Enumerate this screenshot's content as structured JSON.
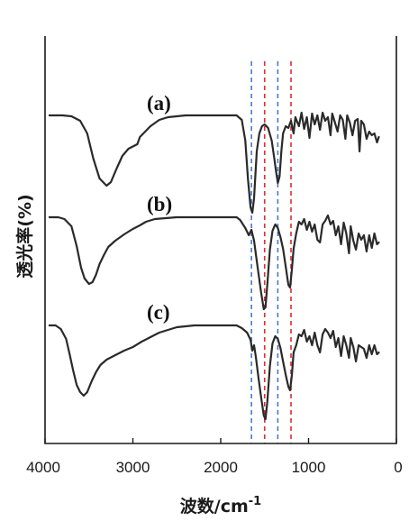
{
  "chart_data": {
    "type": "line",
    "title": "",
    "xlabel": "波数/cm",
    "xlabel_sup": "-1",
    "ylabel": "透光率(%)",
    "xlim": [
      4000,
      0
    ],
    "x_reversed": true,
    "x_ticks": [
      4000,
      3000,
      2000,
      1000,
      0
    ],
    "y_ticks_shown": false,
    "grid": false,
    "legend": "none",
    "reference_lines": [
      {
        "x": 1650,
        "color": "#4a78c8"
      },
      {
        "x": 1500,
        "color": "#d93030"
      },
      {
        "x": 1350,
        "color": "#4a78c8"
      },
      {
        "x": 1200,
        "color": "#d93030"
      }
    ],
    "series": [
      {
        "label": "(a)",
        "color": "#2a2a2a",
        "offset": 0,
        "points": [
          [
            3950,
            0
          ],
          [
            3800,
            0
          ],
          [
            3700,
            -1
          ],
          [
            3600,
            -6
          ],
          [
            3520,
            -20
          ],
          [
            3450,
            -48
          ],
          [
            3380,
            -70
          ],
          [
            3300,
            -78
          ],
          [
            3250,
            -74
          ],
          [
            3180,
            -58
          ],
          [
            3120,
            -45
          ],
          [
            3050,
            -37
          ],
          [
            2950,
            -32
          ],
          [
            2920,
            -24
          ],
          [
            2880,
            -20
          ],
          [
            2800,
            -12
          ],
          [
            2700,
            -5
          ],
          [
            2600,
            -2
          ],
          [
            2400,
            0
          ],
          [
            2000,
            0
          ],
          [
            1820,
            0
          ],
          [
            1760,
            -5
          ],
          [
            1720,
            -28
          ],
          [
            1690,
            -70
          ],
          [
            1660,
            -102
          ],
          [
            1640,
            -108
          ],
          [
            1620,
            -92
          ],
          [
            1590,
            -40
          ],
          [
            1560,
            -20
          ],
          [
            1530,
            -12
          ],
          [
            1500,
            -10
          ],
          [
            1460,
            -14
          ],
          [
            1420,
            -28
          ],
          [
            1390,
            -48
          ],
          [
            1370,
            -62
          ],
          [
            1350,
            -75
          ],
          [
            1330,
            -68
          ],
          [
            1310,
            -40
          ],
          [
            1290,
            -20
          ],
          [
            1260,
            -12
          ],
          [
            1230,
            -14
          ],
          [
            1200,
            -6
          ],
          [
            1170,
            -20
          ],
          [
            1150,
            -2
          ],
          [
            1110,
            -12
          ],
          [
            1080,
            3
          ],
          [
            1050,
            -15
          ],
          [
            1020,
            -2
          ],
          [
            990,
            -25
          ],
          [
            960,
            2
          ],
          [
            930,
            -10
          ],
          [
            900,
            0
          ],
          [
            870,
            -16
          ],
          [
            840,
            3
          ],
          [
            810,
            -6
          ],
          [
            780,
            -2
          ],
          [
            750,
            -22
          ],
          [
            730,
            2
          ],
          [
            700,
            -8
          ],
          [
            670,
            -18
          ],
          [
            640,
            0
          ],
          [
            610,
            -5
          ],
          [
            580,
            -26
          ],
          [
            560,
            0
          ],
          [
            530,
            -8
          ],
          [
            500,
            -22
          ],
          [
            470,
            -6
          ],
          [
            440,
            -4
          ],
          [
            420,
            -40
          ],
          [
            400,
            -6
          ],
          [
            370,
            -10
          ],
          [
            340,
            -26
          ],
          [
            310,
            -18
          ],
          [
            280,
            -22
          ],
          [
            250,
            -20
          ],
          [
            220,
            -30
          ],
          [
            200,
            -24
          ]
        ]
      },
      {
        "label": "(b)",
        "color": "#2a2a2a",
        "offset": 113,
        "points": [
          [
            3950,
            0
          ],
          [
            3850,
            0
          ],
          [
            3780,
            -2
          ],
          [
            3700,
            -10
          ],
          [
            3640,
            -32
          ],
          [
            3590,
            -56
          ],
          [
            3550,
            -68
          ],
          [
            3500,
            -74
          ],
          [
            3460,
            -72
          ],
          [
            3420,
            -64
          ],
          [
            3380,
            -52
          ],
          [
            3330,
            -42
          ],
          [
            3280,
            -33
          ],
          [
            3200,
            -26
          ],
          [
            3100,
            -19
          ],
          [
            3000,
            -13
          ],
          [
            2920,
            -9
          ],
          [
            2850,
            -5
          ],
          [
            2750,
            -2
          ],
          [
            2500,
            0
          ],
          [
            2000,
            0
          ],
          [
            1820,
            0
          ],
          [
            1780,
            -3
          ],
          [
            1720,
            -12
          ],
          [
            1680,
            -20
          ],
          [
            1650,
            -14
          ],
          [
            1620,
            -26
          ],
          [
            1580,
            -55
          ],
          [
            1540,
            -84
          ],
          [
            1510,
            -102
          ],
          [
            1490,
            -100
          ],
          [
            1470,
            -75
          ],
          [
            1440,
            -36
          ],
          [
            1410,
            -15
          ],
          [
            1380,
            -8
          ],
          [
            1350,
            -12
          ],
          [
            1320,
            -22
          ],
          [
            1290,
            -35
          ],
          [
            1260,
            -55
          ],
          [
            1230,
            -75
          ],
          [
            1210,
            -78
          ],
          [
            1190,
            -58
          ],
          [
            1170,
            -35
          ],
          [
            1140,
            -18
          ],
          [
            1110,
            -5
          ],
          [
            1080,
            -8
          ],
          [
            1050,
            -2
          ],
          [
            1020,
            -14
          ],
          [
            990,
            -5
          ],
          [
            960,
            -16
          ],
          [
            930,
            -8
          ],
          [
            900,
            -25
          ],
          [
            870,
            -28
          ],
          [
            840,
            -8
          ],
          [
            810,
            -4
          ],
          [
            780,
            2
          ],
          [
            750,
            -8
          ],
          [
            720,
            -4
          ],
          [
            690,
            -20
          ],
          [
            660,
            -10
          ],
          [
            630,
            -30
          ],
          [
            600,
            -6
          ],
          [
            570,
            -18
          ],
          [
            540,
            -40
          ],
          [
            520,
            -10
          ],
          [
            490,
            -26
          ],
          [
            460,
            -36
          ],
          [
            430,
            -18
          ],
          [
            400,
            -25
          ],
          [
            370,
            -20
          ],
          [
            340,
            -38
          ],
          [
            310,
            -20
          ],
          [
            280,
            -34
          ],
          [
            250,
            -18
          ],
          [
            220,
            -30
          ],
          [
            200,
            -28
          ]
        ]
      },
      {
        "label": "(c)",
        "color": "#2a2a2a",
        "offset": 233,
        "points": [
          [
            3950,
            0
          ],
          [
            3880,
            0
          ],
          [
            3820,
            -4
          ],
          [
            3760,
            -15
          ],
          [
            3720,
            -32
          ],
          [
            3680,
            -50
          ],
          [
            3640,
            -66
          ],
          [
            3600,
            -74
          ],
          [
            3560,
            -78
          ],
          [
            3520,
            -74
          ],
          [
            3470,
            -62
          ],
          [
            3420,
            -52
          ],
          [
            3370,
            -44
          ],
          [
            3300,
            -38
          ],
          [
            3200,
            -33
          ],
          [
            3100,
            -28
          ],
          [
            3000,
            -24
          ],
          [
            2900,
            -18
          ],
          [
            2800,
            -13
          ],
          [
            2700,
            -8
          ],
          [
            2600,
            -5
          ],
          [
            2500,
            -2
          ],
          [
            2300,
            0
          ],
          [
            2000,
            0
          ],
          [
            1820,
            0
          ],
          [
            1760,
            -3
          ],
          [
            1700,
            -8
          ],
          [
            1660,
            -16
          ],
          [
            1640,
            -28
          ],
          [
            1620,
            -22
          ],
          [
            1600,
            -35
          ],
          [
            1570,
            -58
          ],
          [
            1540,
            -80
          ],
          [
            1510,
            -100
          ],
          [
            1490,
            -104
          ],
          [
            1470,
            -85
          ],
          [
            1440,
            -45
          ],
          [
            1410,
            -20
          ],
          [
            1380,
            -12
          ],
          [
            1350,
            -15
          ],
          [
            1320,
            -25
          ],
          [
            1290,
            -40
          ],
          [
            1260,
            -55
          ],
          [
            1230,
            -68
          ],
          [
            1210,
            -72
          ],
          [
            1190,
            -55
          ],
          [
            1170,
            -30
          ],
          [
            1140,
            -22
          ],
          [
            1110,
            -10
          ],
          [
            1080,
            -12
          ],
          [
            1050,
            -5
          ],
          [
            1020,
            -18
          ],
          [
            990,
            -12
          ],
          [
            960,
            -22
          ],
          [
            930,
            -8
          ],
          [
            900,
            -22
          ],
          [
            870,
            -30
          ],
          [
            840,
            -10
          ],
          [
            810,
            -4
          ],
          [
            780,
            -8
          ],
          [
            750,
            -14
          ],
          [
            720,
            -6
          ],
          [
            690,
            -24
          ],
          [
            660,
            -14
          ],
          [
            630,
            -34
          ],
          [
            600,
            -12
          ],
          [
            570,
            -22
          ],
          [
            540,
            -36
          ],
          [
            520,
            -14
          ],
          [
            490,
            -24
          ],
          [
            460,
            -40
          ],
          [
            430,
            -22
          ],
          [
            400,
            -24
          ],
          [
            370,
            -26
          ],
          [
            340,
            -36
          ],
          [
            310,
            -22
          ],
          [
            280,
            -32
          ],
          [
            250,
            -22
          ],
          [
            220,
            -32
          ],
          [
            200,
            -30
          ]
        ]
      }
    ]
  }
}
